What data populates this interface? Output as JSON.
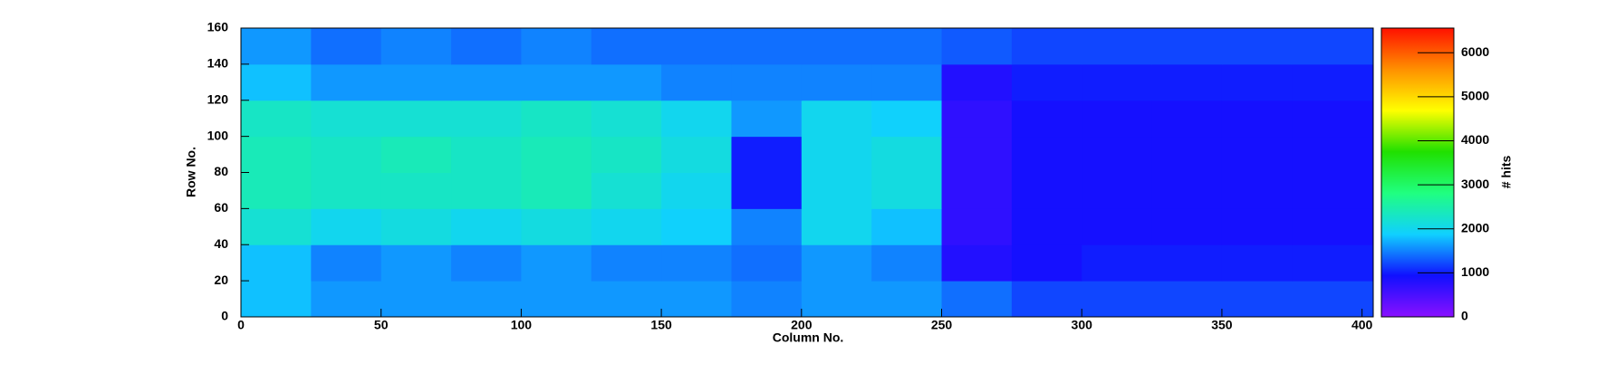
{
  "chart_data": {
    "type": "heatmap",
    "x_label": "Column No.",
    "y_label": "Row No.",
    "z_label": "# hits",
    "xlim": [
      0,
      404
    ],
    "xticks": [
      0,
      50,
      100,
      150,
      200,
      250,
      300,
      350,
      400
    ],
    "ylim": [
      0,
      160
    ],
    "yticks": [
      0,
      20,
      40,
      60,
      80,
      100,
      120,
      140,
      160
    ],
    "zlim": [
      0,
      6560
    ],
    "zticks": [
      0,
      1000,
      2000,
      3000,
      4000,
      5000,
      6000
    ],
    "xbins": [
      0,
      25,
      50,
      75,
      100,
      125,
      150,
      175,
      200,
      225,
      250,
      275,
      300,
      325,
      350,
      375,
      404
    ],
    "ybins": [
      0,
      20,
      40,
      60,
      80,
      100,
      120,
      140,
      160
    ],
    "z": [
      [
        1800,
        1600,
        1600,
        1600,
        1600,
        1600,
        1600,
        1500,
        1600,
        1600,
        1400,
        1200,
        1200,
        1200,
        1200,
        1200
      ],
      [
        1800,
        1500,
        1600,
        1500,
        1600,
        1500,
        1500,
        1400,
        1600,
        1500,
        800,
        900,
        1000,
        1000,
        1000,
        1000
      ],
      [
        2200,
        2000,
        2100,
        2000,
        2100,
        2000,
        1900,
        1500,
        2000,
        1800,
        700,
        900,
        900,
        900,
        900,
        900
      ],
      [
        2400,
        2300,
        2300,
        2300,
        2400,
        2200,
        2000,
        1000,
        2000,
        2100,
        700,
        900,
        900,
        900,
        900,
        900
      ],
      [
        2400,
        2300,
        2400,
        2300,
        2400,
        2300,
        2100,
        1000,
        2000,
        2100,
        700,
        900,
        900,
        900,
        900,
        900
      ],
      [
        2300,
        2200,
        2200,
        2200,
        2300,
        2200,
        2000,
        1600,
        2000,
        1900,
        700,
        900,
        900,
        900,
        900,
        900
      ],
      [
        1800,
        1600,
        1600,
        1600,
        1600,
        1600,
        1500,
        1500,
        1500,
        1500,
        800,
        1000,
        1000,
        1000,
        1000,
        1000
      ],
      [
        1600,
        1400,
        1500,
        1400,
        1500,
        1400,
        1400,
        1400,
        1400,
        1400,
        1300,
        1200,
        1200,
        1200,
        1200,
        1200
      ]
    ],
    "colorscale": [
      "#8a10ff",
      "#1010ff",
      "#10d0ff",
      "#20ff80",
      "#20e000",
      "#ffff00",
      "#ff9000",
      "#ff1000"
    ]
  }
}
